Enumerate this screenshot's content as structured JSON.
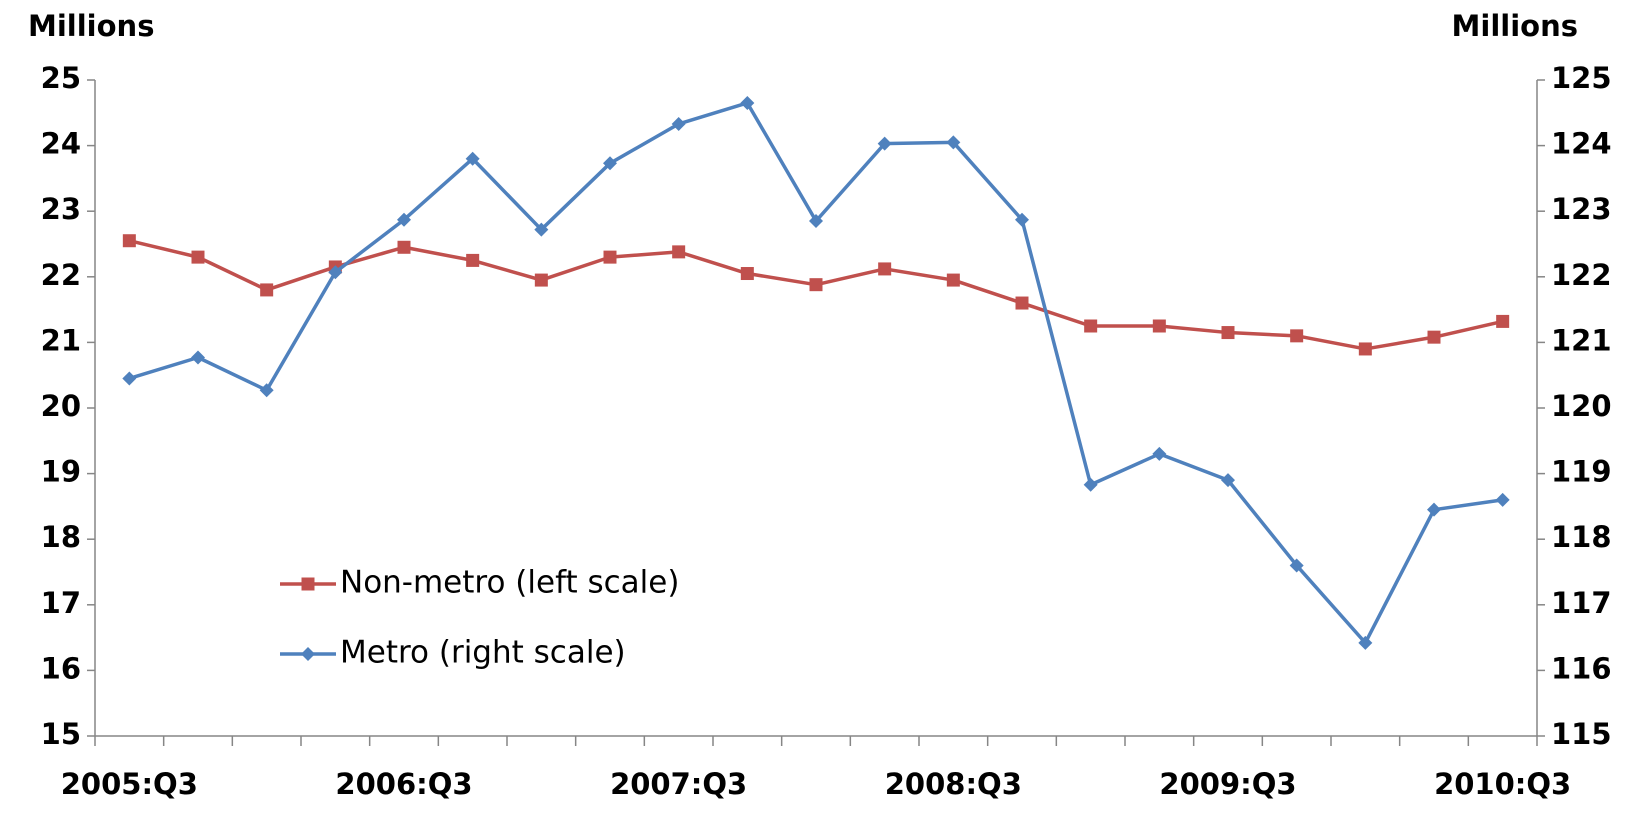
{
  "chart_data": {
    "type": "line",
    "y_label": "Millions",
    "y2_label": "Millions",
    "categories": [
      "2005:Q3",
      null,
      null,
      null,
      "2006:Q3",
      null,
      null,
      null,
      "2007:Q3",
      null,
      null,
      null,
      "2008:Q3",
      null,
      null,
      null,
      "2009:Q3",
      null,
      null,
      null,
      "2010:Q3"
    ],
    "series": [
      {
        "name": "Non-metro (left scale)",
        "color": "#c0504d",
        "marker": "square",
        "axis": "y",
        "values": [
          22.55,
          22.3,
          21.8,
          22.15,
          22.45,
          22.25,
          21.95,
          22.3,
          22.38,
          22.05,
          21.88,
          22.12,
          21.95,
          21.6,
          21.25,
          21.25,
          21.15,
          21.1,
          20.9,
          21.08,
          21.32
        ]
      },
      {
        "name": "Metro (right scale)",
        "color": "#4f81bd",
        "marker": "diamond",
        "axis": "y2",
        "values": [
          120.45,
          120.77,
          120.27,
          122.07,
          122.87,
          123.8,
          122.72,
          123.73,
          124.33,
          124.65,
          122.85,
          124.03,
          124.05,
          122.87,
          118.83,
          119.3,
          118.9,
          117.6,
          116.42,
          118.45,
          118.6
        ]
      }
    ],
    "ylim": [
      15,
      25
    ],
    "yticks": [
      15,
      16,
      17,
      18,
      19,
      20,
      21,
      22,
      23,
      24,
      25
    ],
    "y2lim": [
      115,
      125
    ],
    "y2ticks": [
      115,
      116,
      117,
      118,
      119,
      120,
      121,
      122,
      123,
      124,
      125
    ],
    "grid": false
  }
}
